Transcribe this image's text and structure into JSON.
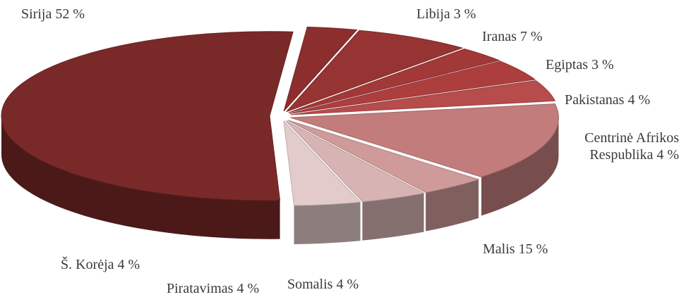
{
  "chart_data": {
    "type": "pie",
    "categories": [
      "Libija",
      "Iranas",
      "Egiptas",
      "Pakistanas",
      "Centrinė Afrikos Respublika",
      "Malis",
      "Somalis",
      "Piratavimas",
      "Š. Korėja",
      "Sirija"
    ],
    "values": [
      3,
      7,
      3,
      4,
      4,
      15,
      4,
      4,
      4,
      52
    ],
    "value_labels": [
      "3 %",
      "7 %",
      "3 %",
      "4 %",
      "4 %",
      "15 %",
      "4 %",
      "4 %",
      "4 %",
      "52 %"
    ],
    "colors": [
      "#8c2e2e",
      "#963333",
      "#a23838",
      "#ad3e3e",
      "#b64c4c",
      "#c27c7c",
      "#cf9a9a",
      "#d8b3b3",
      "#e3cbcb",
      "#7a2929"
    ]
  }
}
